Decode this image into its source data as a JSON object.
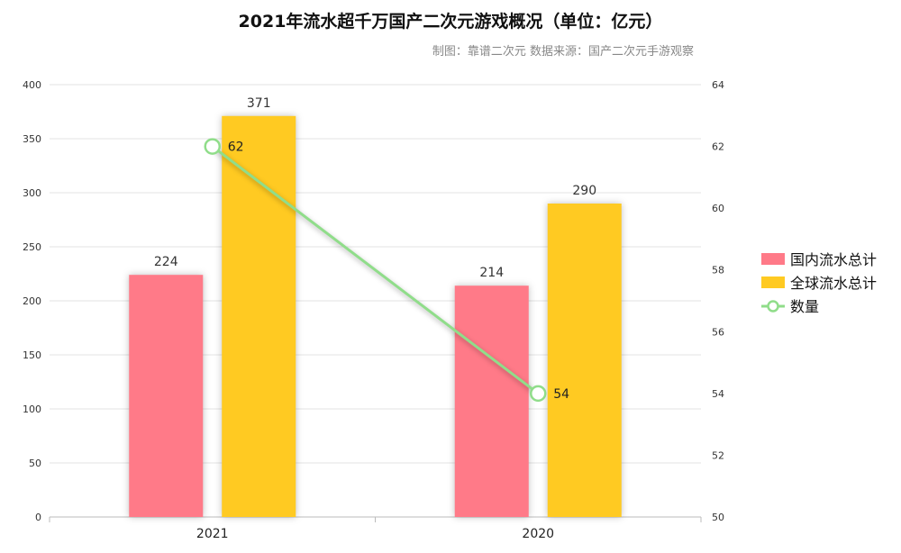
{
  "chart_data": {
    "type": "bar",
    "title": "2021年流水超千万国产二次元游戏概况（单位：亿元）",
    "subtitle": "制图：靠谱二次元 数据来源：国产二次元手游观察",
    "categories": [
      "2021",
      "2020"
    ],
    "series": [
      {
        "name": "国内流水总计",
        "type": "bar",
        "axis": "left",
        "color": "#ff7a88",
        "values": [
          224,
          214
        ]
      },
      {
        "name": "全球流水总计",
        "type": "bar",
        "axis": "left",
        "color": "#ffca22",
        "values": [
          371,
          290
        ]
      },
      {
        "name": "数量",
        "type": "line",
        "axis": "right",
        "color": "#90dd8a",
        "values": [
          62,
          54
        ]
      }
    ],
    "y_left": {
      "range": [
        0,
        400
      ],
      "ticks": [
        "0",
        "50",
        "100",
        "150",
        "200",
        "250",
        "300",
        "350",
        "400"
      ]
    },
    "y_right": {
      "range": [
        50,
        64
      ],
      "ticks": [
        "50",
        "52",
        "54",
        "56",
        "58",
        "60",
        "62",
        "64"
      ]
    },
    "grid": true,
    "legend_position": "right",
    "data_labels": true
  }
}
